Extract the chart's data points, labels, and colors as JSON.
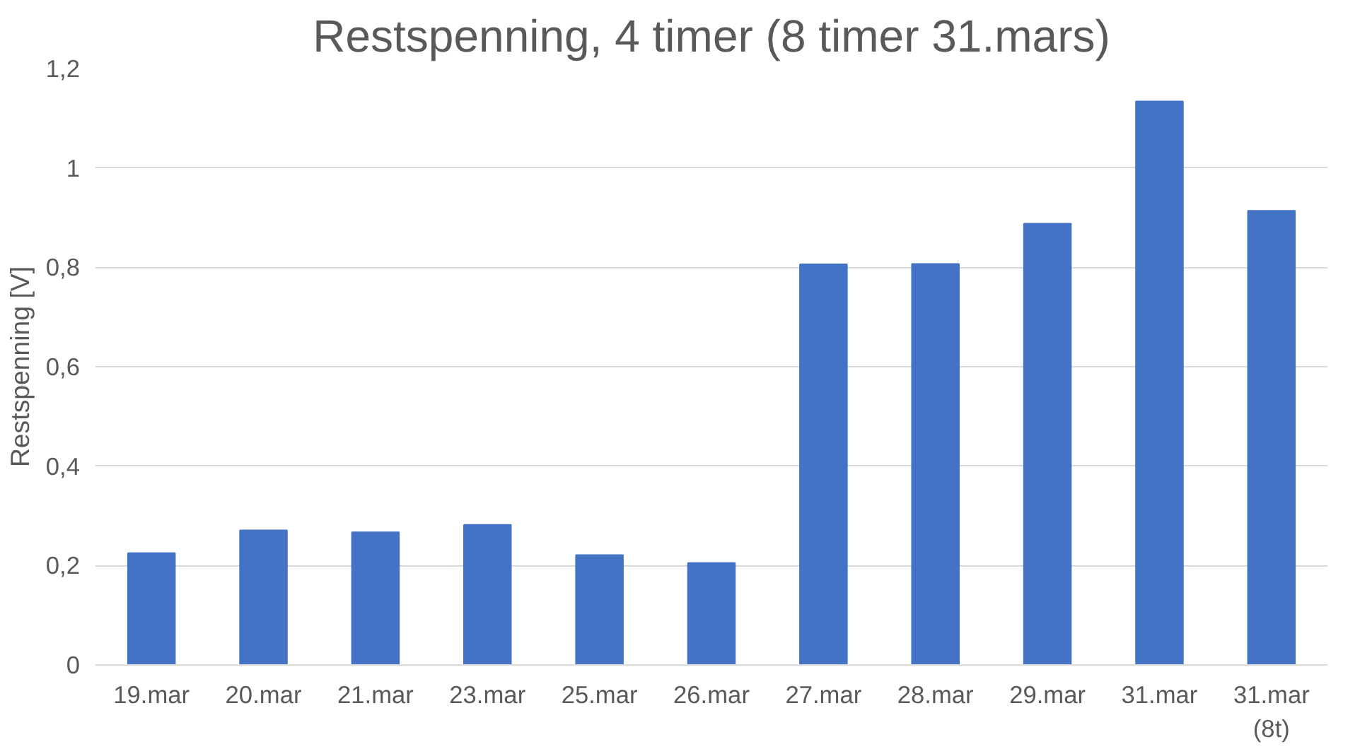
{
  "chart_data": {
    "type": "bar",
    "title": "Restspenning, 4 timer (8 timer 31.mars)",
    "ylabel": "Restspenning [V]",
    "categories": [
      "19.mar",
      "20.mar",
      "21.mar",
      "23.mar",
      "25.mar",
      "26.mar",
      "27.mar",
      "28.mar",
      "29.mar",
      "31.mar",
      "31.mar (8t)"
    ],
    "values": [
      0.225,
      0.271,
      0.267,
      0.282,
      0.221,
      0.205,
      0.806,
      0.807,
      0.888,
      1.134,
      0.914
    ],
    "color": "#4472c4",
    "ylim": [
      0,
      1.2
    ],
    "yticks": [
      0,
      {
        "value": 0.2,
        "label": "0,2"
      },
      {
        "value": 0.4,
        "label": "0,4"
      },
      {
        "value": 0.6,
        "label": "0,6"
      },
      {
        "value": 0.8,
        "label": "0,8"
      },
      1,
      {
        "value": 1.2,
        "label": "1,2"
      }
    ],
    "grid": "y"
  }
}
